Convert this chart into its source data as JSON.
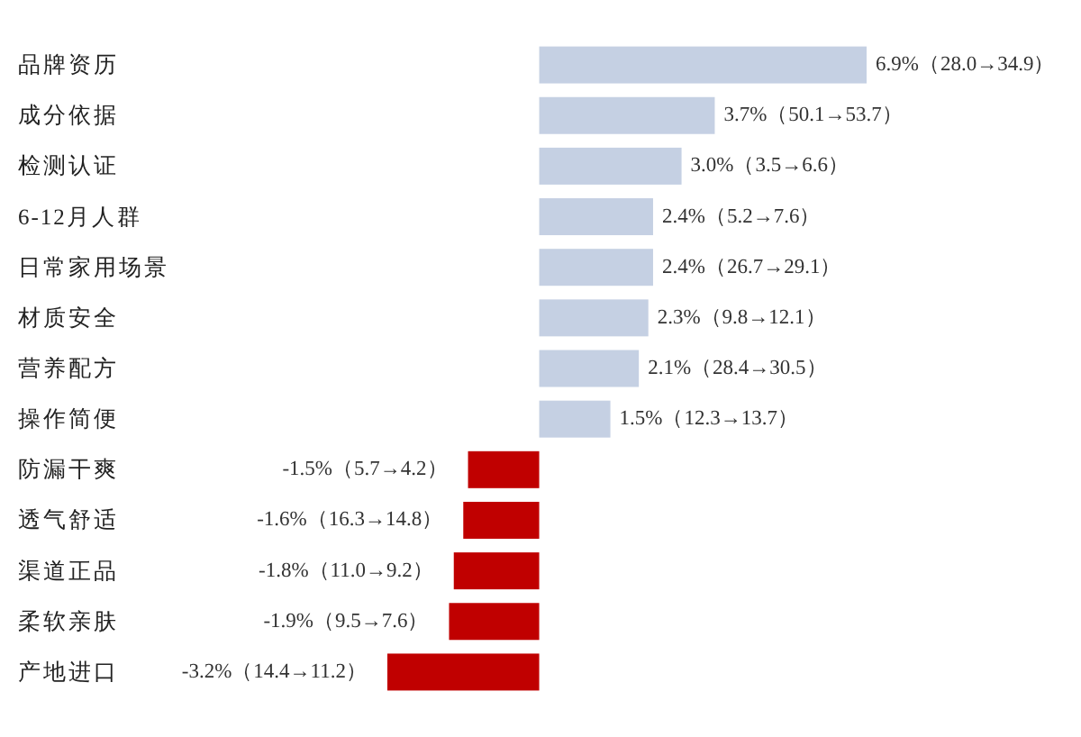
{
  "chart_data": {
    "type": "bar",
    "orientation": "horizontal",
    "categories": [
      "品牌资历",
      "成分依据",
      "检测认证",
      "6-12月人群",
      "日常家用场景",
      "材质安全",
      "营养配方",
      "操作简便",
      "防漏干爽",
      "透气舒适",
      "渠道正品",
      "柔软亲肤",
      "产地进口"
    ],
    "values": [
      6.9,
      3.7,
      3.0,
      2.4,
      2.4,
      2.3,
      2.1,
      1.5,
      -1.5,
      -1.6,
      -1.8,
      -1.9,
      -3.2
    ],
    "colors": [
      "#c5d0e3",
      "#c5d0e3",
      "#c5d0e3",
      "#c5d0e3",
      "#c5d0e3",
      "#c5d0e3",
      "#c5d0e3",
      "#c5d0e3",
      "#c00000",
      "#c00000",
      "#c00000",
      "#c00000",
      "#c00000"
    ],
    "value_labels": [
      "6.9%（28.0→34.9）",
      "3.7%（50.1→53.7）",
      "3.0%（3.5→6.6）",
      "2.4%（5.2→7.6）",
      "2.4%（26.7→29.1）",
      "2.3%（9.8→12.1）",
      "2.1%（28.4→30.5）",
      "1.5%（12.3→13.7）",
      "-1.5%（5.7→4.2）",
      "-1.6%（16.3→14.8）",
      "-1.8%（11.0→9.2）",
      "-1.9%（9.5→7.6）",
      "-3.2%（14.4→11.2）"
    ]
  }
}
